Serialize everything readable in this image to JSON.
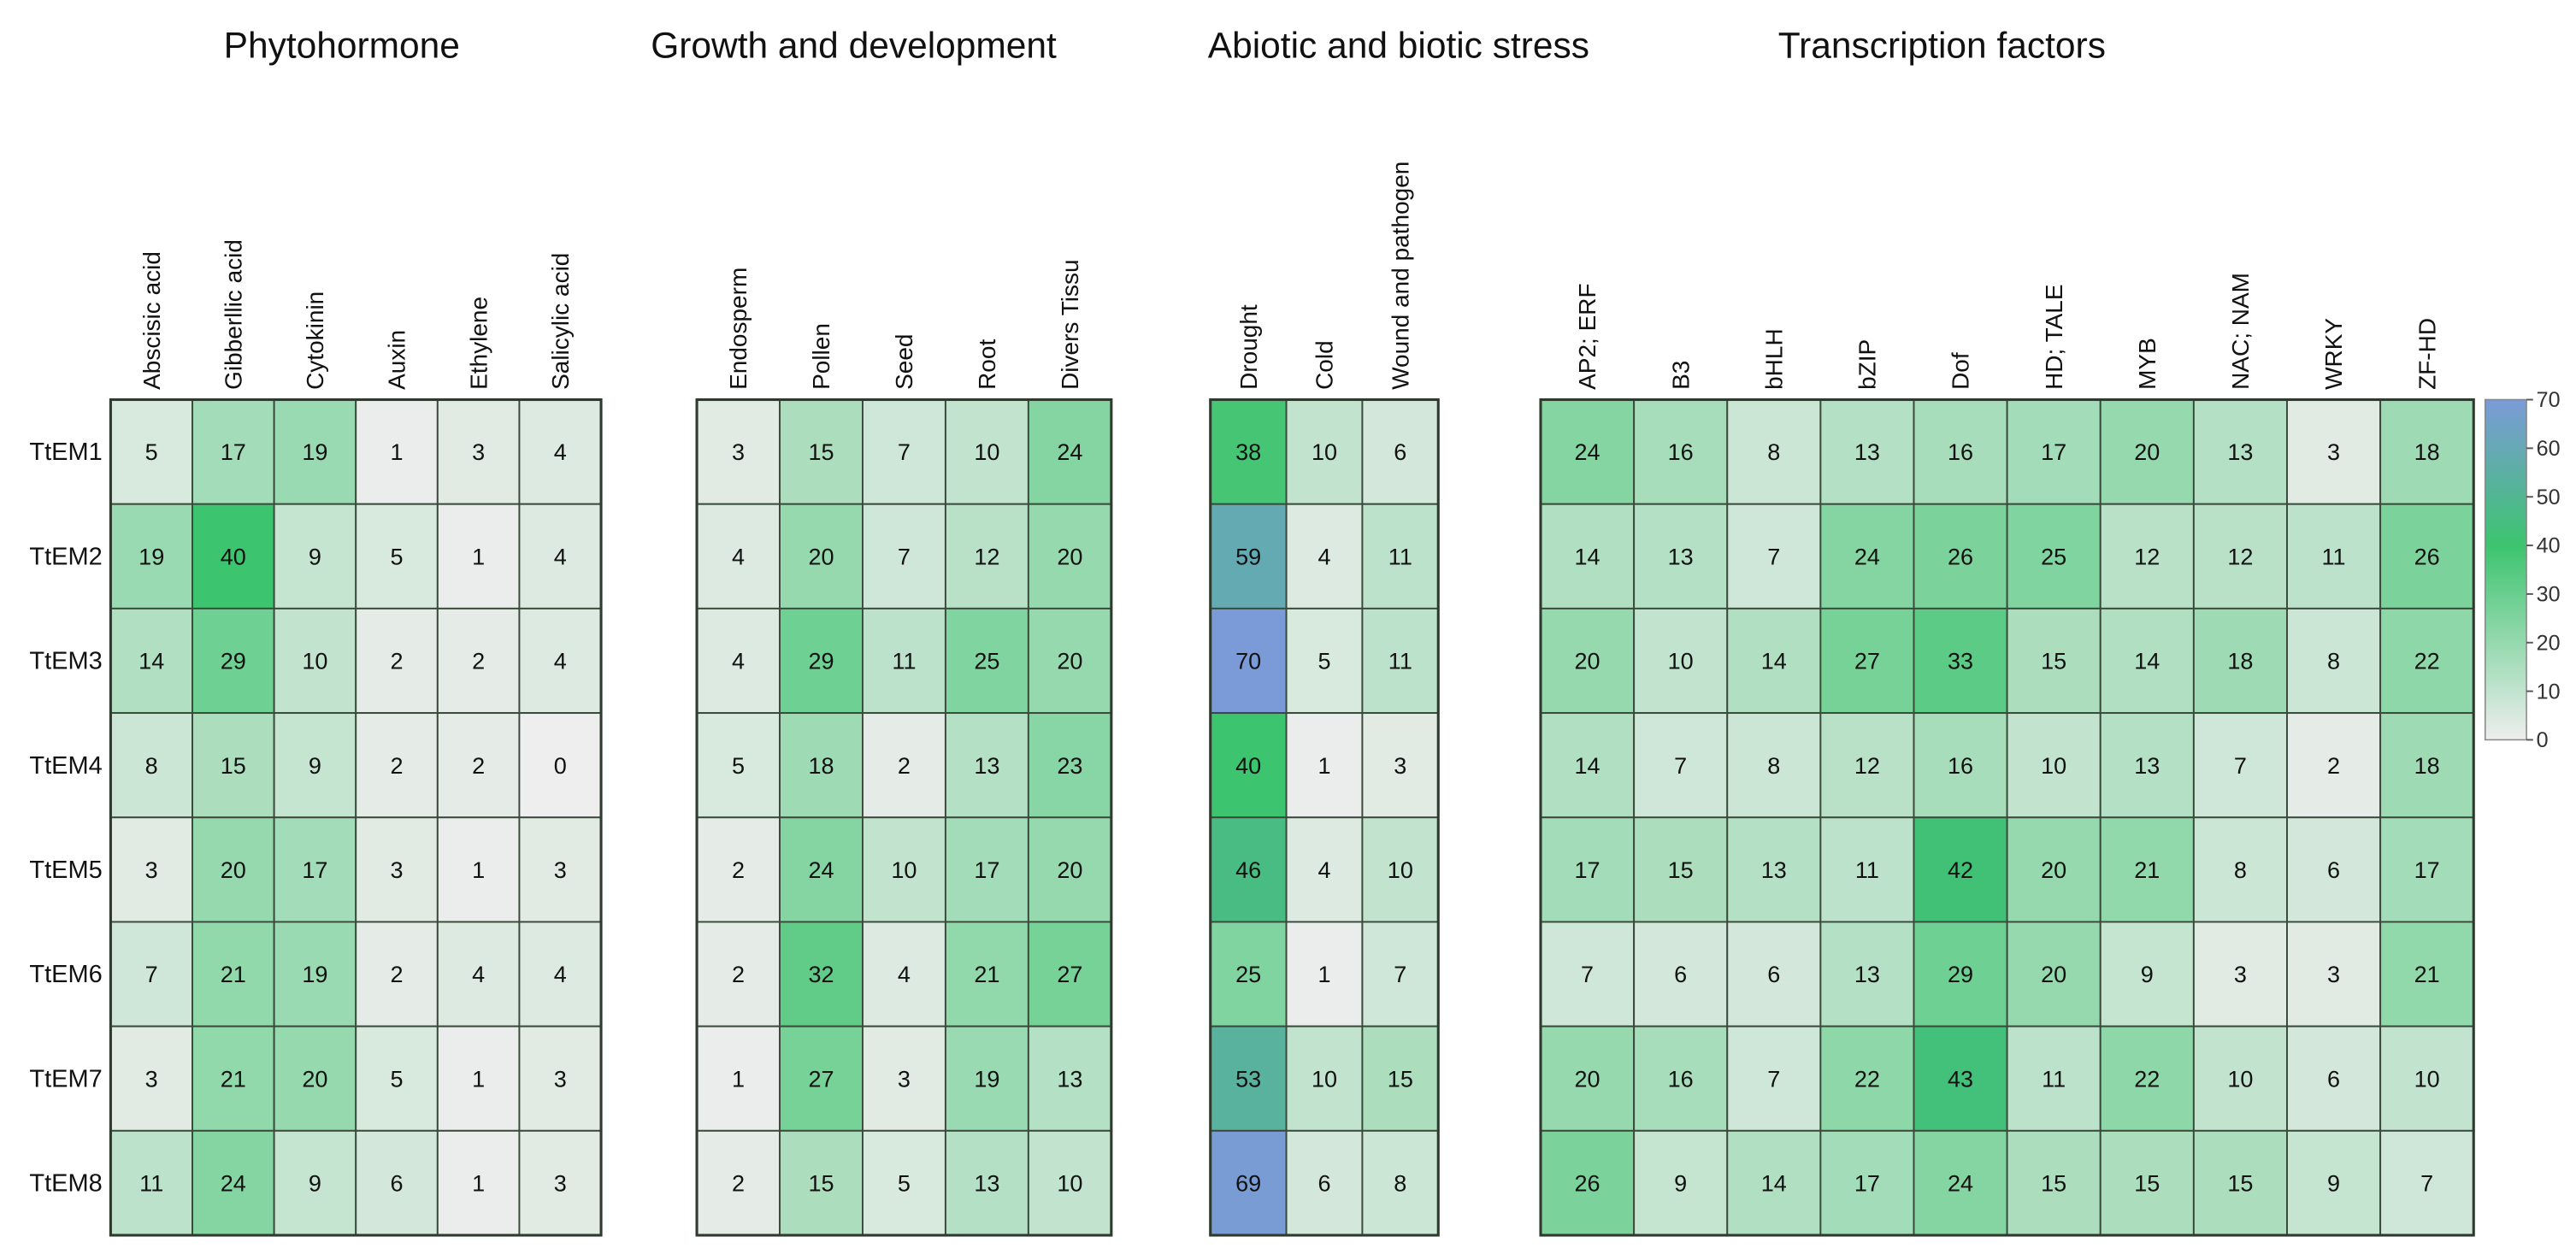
{
  "chart_data": {
    "type": "heatmap",
    "rows": [
      "TtEM1",
      "TtEM2",
      "TtEM3",
      "TtEM4",
      "TtEM5",
      "TtEM6",
      "TtEM7",
      "TtEM8"
    ],
    "panels": [
      {
        "title": "Phytohormone",
        "columns": [
          "Abscisic acid",
          "Gibberllic acid",
          "Cytokinin",
          "Auxin",
          "Ethylene",
          "Salicylic acid"
        ],
        "values": [
          [
            5,
            17,
            19,
            1,
            3,
            4
          ],
          [
            19,
            40,
            9,
            5,
            1,
            4
          ],
          [
            14,
            29,
            10,
            2,
            2,
            4
          ],
          [
            8,
            15,
            9,
            2,
            2,
            0
          ],
          [
            3,
            20,
            17,
            3,
            1,
            3
          ],
          [
            7,
            21,
            19,
            2,
            4,
            4
          ],
          [
            3,
            21,
            20,
            5,
            1,
            3
          ],
          [
            11,
            24,
            9,
            6,
            1,
            3
          ]
        ]
      },
      {
        "title": "Growth  and development",
        "columns": [
          "Endosperm",
          "Pollen",
          "Seed",
          "Root",
          "Divers Tissu"
        ],
        "values": [
          [
            3,
            15,
            7,
            10,
            24
          ],
          [
            4,
            20,
            7,
            12,
            20
          ],
          [
            4,
            29,
            11,
            25,
            20
          ],
          [
            5,
            18,
            2,
            13,
            23
          ],
          [
            2,
            24,
            10,
            17,
            20
          ],
          [
            2,
            32,
            4,
            21,
            27
          ],
          [
            1,
            27,
            3,
            19,
            13
          ],
          [
            2,
            15,
            5,
            13,
            10
          ]
        ]
      },
      {
        "title": "Abiotic and biotic stress",
        "columns": [
          "Drought",
          "Cold",
          "Wound and pathogen"
        ],
        "values": [
          [
            38,
            10,
            6
          ],
          [
            59,
            4,
            11
          ],
          [
            70,
            5,
            11
          ],
          [
            40,
            1,
            3
          ],
          [
            46,
            4,
            10
          ],
          [
            25,
            1,
            7
          ],
          [
            53,
            10,
            15
          ],
          [
            69,
            6,
            8
          ]
        ]
      },
      {
        "title": "Transcription factors",
        "columns": [
          "AP2; ERF",
          "B3",
          "bHLH",
          "bZIP",
          "Dof",
          "HD; TALE",
          "MYB",
          "NAC; NAM",
          "WRKY",
          "ZF-HD"
        ],
        "values": [
          [
            24,
            16,
            8,
            13,
            16,
            17,
            20,
            13,
            3,
            18
          ],
          [
            14,
            13,
            7,
            24,
            26,
            25,
            12,
            12,
            11,
            26
          ],
          [
            20,
            10,
            14,
            27,
            33,
            15,
            14,
            18,
            8,
            22
          ],
          [
            14,
            7,
            8,
            12,
            16,
            10,
            13,
            7,
            2,
            18
          ],
          [
            17,
            15,
            13,
            11,
            42,
            20,
            21,
            8,
            6,
            17
          ],
          [
            7,
            6,
            6,
            13,
            29,
            20,
            9,
            3,
            3,
            21
          ],
          [
            20,
            16,
            7,
            22,
            43,
            11,
            22,
            10,
            6,
            10
          ],
          [
            26,
            9,
            14,
            17,
            24,
            15,
            15,
            15,
            9,
            7
          ]
        ]
      }
    ],
    "colorbar": {
      "range": [
        0,
        70
      ],
      "ticks": [
        "0",
        "10",
        "20",
        "30",
        "40",
        "50",
        "60",
        "70"
      ],
      "colors": {
        "low": "#eeeeee",
        "mid": "#3dc46f",
        "high": "#7b9bd8"
      }
    }
  }
}
